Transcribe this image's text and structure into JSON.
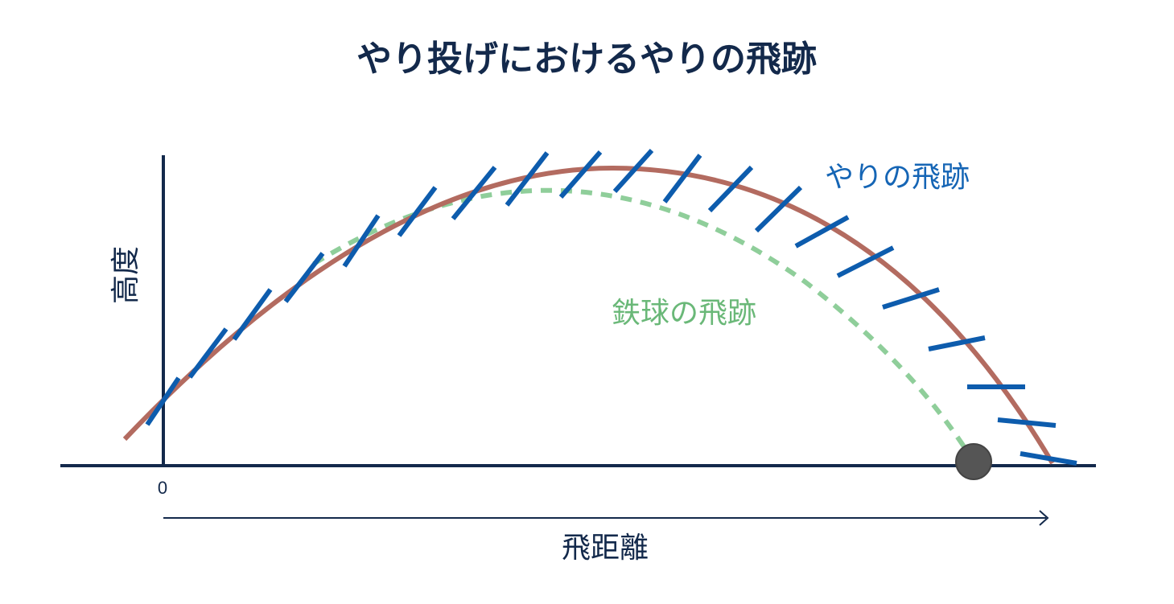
{
  "title": "やり投げにおけるやりの飛跡",
  "axes": {
    "ylabel": "高度",
    "xlabel": "飛距離",
    "origin_label": "0"
  },
  "curves": {
    "javelin_label": "やりの飛跡",
    "shot_label": "鉄球の飛跡"
  },
  "colors": {
    "title": "#13294b",
    "axis": "#13294b",
    "javelin_path": "#b36b60",
    "javelin_marks": "#0d5cad",
    "shot_path": "#8fce9a",
    "shot_label": "#6ab878",
    "javelin_label": "#1565b5",
    "ball": "#555555"
  }
}
